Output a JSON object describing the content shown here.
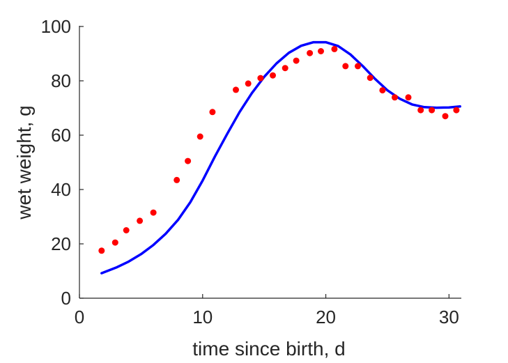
{
  "chart_data": {
    "type": "line",
    "xlabel": "time since birth, d",
    "ylabel": "wet weight, g",
    "xlim": [
      0,
      31
    ],
    "ylim": [
      0,
      100
    ],
    "xticks": [
      "0",
      "10",
      "20",
      "30"
    ],
    "yticks": [
      "0",
      "20",
      "40",
      "60",
      "80",
      "100"
    ],
    "grid": false,
    "legend": "none",
    "series": [
      {
        "type": "scatter",
        "color": "#ff0000",
        "marker": "circle",
        "x": [
          1.8,
          2.9,
          3.8,
          4.9,
          6.0,
          7.9,
          8.8,
          9.8,
          10.8,
          12.7,
          13.7,
          14.7,
          15.7,
          16.7,
          17.6,
          18.7,
          19.6,
          20.7,
          21.6,
          22.6,
          23.6,
          24.6,
          25.6,
          26.7,
          27.7,
          28.6,
          29.7,
          30.6
        ],
        "y": [
          17.5,
          20.5,
          25.0,
          28.5,
          31.5,
          43.5,
          50.5,
          59.5,
          68.5,
          76.7,
          79.0,
          81.0,
          82.0,
          84.7,
          87.4,
          90.2,
          90.9,
          91.7,
          85.4,
          85.4,
          81.1,
          76.5,
          73.9,
          73.9,
          69.2,
          69.2,
          67.0,
          69.2
        ]
      },
      {
        "type": "line",
        "color": "#0000ff",
        "x": [
          1.8,
          3,
          4,
          5,
          6,
          7,
          8,
          9,
          10,
          11,
          12,
          13,
          14,
          15,
          16,
          17,
          18,
          19,
          20,
          21,
          22,
          23,
          24,
          25,
          26,
          27,
          28,
          29,
          30,
          30.9
        ],
        "y": [
          9.2,
          11.3,
          13.5,
          16.2,
          19.6,
          23.7,
          28.8,
          35.3,
          43.3,
          52.2,
          60.5,
          68.5,
          75.5,
          81.5,
          86.4,
          90.3,
          92.9,
          94.2,
          94.2,
          92.8,
          89.7,
          85.4,
          80.7,
          76.5,
          73.4,
          71.3,
          70.3,
          70.1,
          70.2,
          70.6
        ]
      }
    ]
  }
}
